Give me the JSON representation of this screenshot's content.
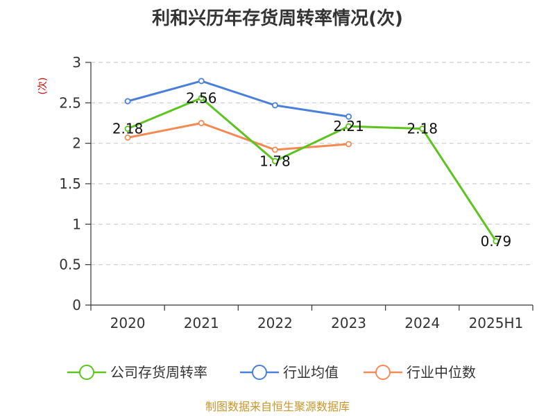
{
  "chart_data": {
    "type": "line",
    "title": "利和兴历年存货周转率情况(次)",
    "ylabel": "(次)",
    "xlabel": "",
    "categories": [
      "2020",
      "2021",
      "2022",
      "2023",
      "2024",
      "2025H1"
    ],
    "ylim": [
      0,
      3
    ],
    "yticks": [
      "0",
      "0.5",
      "1",
      "1.5",
      "2",
      "2.5",
      "3"
    ],
    "grid": true,
    "legend_position": "bottom",
    "series": [
      {
        "name": "公司存货周转率",
        "color": "#5cc41e",
        "values": [
          2.18,
          2.56,
          1.78,
          2.21,
          2.18,
          0.79
        ],
        "labels": [
          "2.18",
          "2.56",
          "1.78",
          "2.21",
          "2.18",
          "0.79"
        ]
      },
      {
        "name": "行业均值",
        "color": "#4a7fdc",
        "values": [
          2.52,
          2.77,
          2.47,
          2.33,
          null,
          null
        ]
      },
      {
        "name": "行业中位数",
        "color": "#f48a52",
        "values": [
          2.07,
          2.25,
          1.92,
          1.99,
          null,
          null
        ]
      }
    ],
    "source": "制图数据来自恒生聚源数据库"
  }
}
